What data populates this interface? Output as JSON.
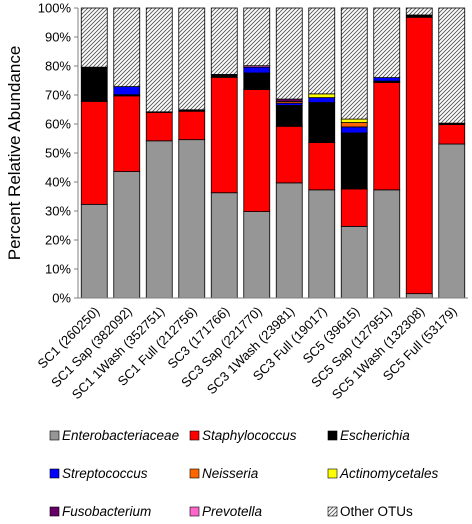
{
  "chart_data": {
    "type": "bar",
    "stacked": true,
    "percent": true,
    "ylabel": "Percent Relative Abundance",
    "ylim": [
      0,
      100
    ],
    "yticks": [
      "0%",
      "10%",
      "20%",
      "30%",
      "40%",
      "50%",
      "60%",
      "70%",
      "80%",
      "90%",
      "100%"
    ],
    "categories": [
      "SC1 (260250)",
      "SC1 Sap (382092)",
      "SC1 1Wash (352751)",
      "SC1 Full (212756)",
      "SC3 (171766)",
      "SC3 Sap (221770)",
      "SC3 1Wash (23981)",
      "SC3 Full (19017)",
      "SC5 (39615)",
      "SC5 Sap (127951)",
      "SC5 1Wash (132308)",
      "SC5 Full (53179)"
    ],
    "series": [
      {
        "name": "Enterobacteriaceae",
        "color": "#969696",
        "pattern": "solid",
        "values": [
          32.3,
          43.6,
          54.2,
          54.6,
          36.3,
          29.8,
          39.7,
          37.3,
          24.7,
          37.3,
          1.5,
          53.1
        ]
      },
      {
        "name": "Staphylococcus",
        "color": "#ff0000",
        "pattern": "solid",
        "values": [
          35.5,
          26.1,
          9.8,
          9.8,
          39.8,
          42.1,
          19.5,
          16.3,
          12.9,
          37.0,
          95.3,
          6.7
        ]
      },
      {
        "name": "Escherichia",
        "color": "#000000",
        "pattern": "solid",
        "values": [
          11.8,
          0.4,
          0.2,
          0.5,
          1.0,
          5.7,
          7.2,
          13.8,
          19.3,
          0.5,
          0.8,
          0.5
        ]
      },
      {
        "name": "Streptococcus",
        "color": "#0000ff",
        "pattern": "solid",
        "values": [
          0.0,
          2.8,
          0.0,
          0.0,
          0.0,
          2.0,
          0.8,
          1.7,
          2.1,
          1.2,
          0.0,
          0.0
        ]
      },
      {
        "name": "Neisseria",
        "color": "#ff6600",
        "pattern": "solid",
        "values": [
          0.0,
          0.0,
          0.0,
          0.0,
          0.0,
          0.0,
          0.6,
          0.0,
          1.5,
          0.0,
          0.0,
          0.0
        ]
      },
      {
        "name": "Actinomycetales",
        "color": "#ffff00",
        "pattern": "solid",
        "values": [
          0.0,
          0.0,
          0.0,
          0.0,
          0.0,
          0.0,
          0.0,
          1.3,
          1.2,
          0.0,
          0.0,
          0.0
        ]
      },
      {
        "name": "Fusobacterium",
        "color": "#660066",
        "pattern": "solid",
        "values": [
          0.0,
          0.0,
          0.0,
          0.0,
          0.0,
          0.0,
          0.8,
          0.0,
          0.0,
          0.0,
          0.0,
          0.0
        ]
      },
      {
        "name": "Prevotella",
        "color": "#ff66cc",
        "pattern": "solid",
        "values": [
          0.0,
          0.0,
          0.0,
          0.0,
          0.0,
          0.5,
          0.0,
          0.0,
          0.0,
          0.0,
          0.0,
          0.0
        ]
      },
      {
        "name": "Other OTUs",
        "color": "#ffffff",
        "pattern": "hatch",
        "values": [
          20.4,
          27.1,
          35.8,
          35.1,
          22.9,
          19.9,
          31.4,
          29.6,
          38.3,
          24.0,
          2.4,
          39.7
        ]
      }
    ],
    "legend_position": "bottom",
    "grid": false
  }
}
